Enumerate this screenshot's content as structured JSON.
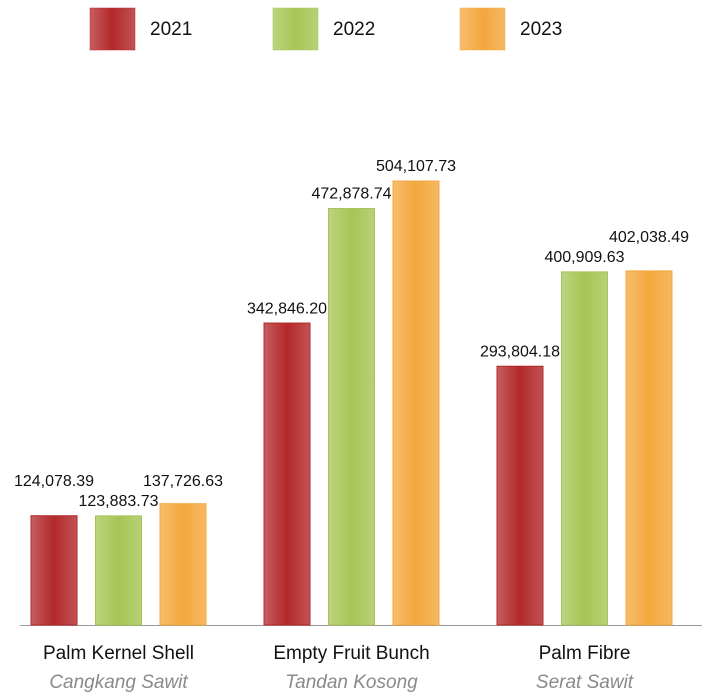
{
  "chart_data": {
    "type": "bar",
    "categories": [
      "Palm Kernel Shell",
      "Empty Fruit Bunch",
      "Palm Fibre"
    ],
    "category_subtitles": [
      "Cangkang Sawit",
      "Tandan Kosong",
      "Serat Sawit"
    ],
    "series": [
      {
        "name": "2021",
        "color": "#b3282a",
        "values": [
          124078.39,
          342846.2,
          293804.18
        ],
        "value_labels": [
          "124,078.39",
          "342,846.20",
          "293,804.18"
        ]
      },
      {
        "name": "2022",
        "color": "#a6c556",
        "values": [
          123883.73,
          472878.74,
          400909.63
        ],
        "value_labels": [
          "123,883.73",
          "472,878.74",
          "400,909.63"
        ]
      },
      {
        "name": "2023",
        "color": "#f4a73d",
        "values": [
          137726.63,
          504107.73,
          402038.49
        ],
        "value_labels": [
          "137,726.63",
          "504,107.73",
          "402,038.49"
        ]
      }
    ],
    "legend": "top"
  }
}
